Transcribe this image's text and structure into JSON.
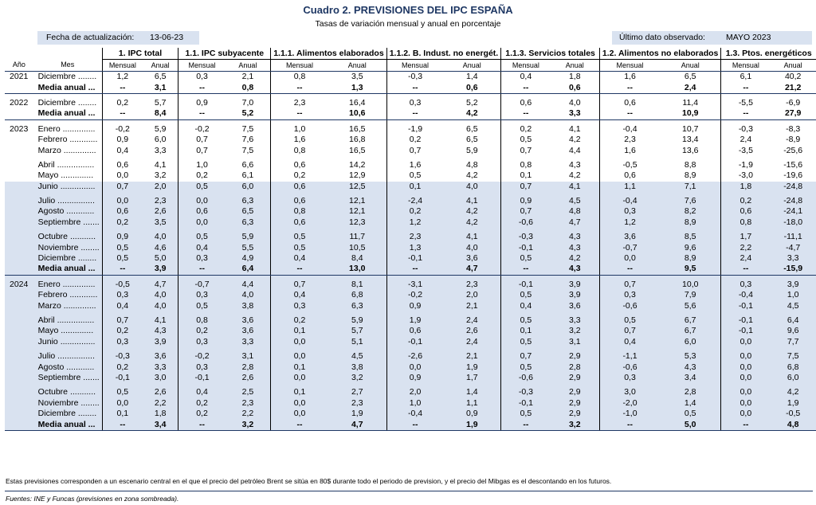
{
  "title": "Cuadro 2. PREVISIONES DEL IPC ESPAÑA",
  "subtitle": "Tasas de variación mensual y anual en porcentaje",
  "update_label": "Fecha de actualización:",
  "update_date": "13-06-23",
  "last_obs_label": "Último dato observado:",
  "last_obs_value": "MAYO 2023",
  "headers": {
    "year": "Año",
    "month": "Mes",
    "groups": [
      "1. IPC total",
      "1.1. IPC subyacente",
      "1.1.1. Alimentos elaborados",
      "1.1.2. B. Indust. no energét.",
      "1.1.3. Servicios totales",
      "1.2. Alimentos no elaborados",
      "1.3. Ptos. energéticos"
    ],
    "mensual": "Mensual",
    "anual": "Anual"
  },
  "rows": [
    {
      "kind": "row",
      "year": "2021",
      "month": "Diciembre ........",
      "values": [
        "1,2",
        "6,5",
        "0,3",
        "2,1",
        "0,8",
        "3,5",
        "-0,3",
        "1,4",
        "0,4",
        "1,8",
        "1,6",
        "6,5",
        "6,1",
        "40,2"
      ]
    },
    {
      "kind": "med",
      "month": "Media anual ...",
      "values": [
        "--",
        "3,1",
        "--",
        "0,8",
        "--",
        "1,3",
        "--",
        "0,6",
        "--",
        "0,6",
        "--",
        "2,4",
        "--",
        "21,2"
      ],
      "end": true
    },
    {
      "kind": "gap"
    },
    {
      "kind": "row",
      "year": "2022",
      "month": "Diciembre ........",
      "values": [
        "0,2",
        "5,7",
        "0,9",
        "7,0",
        "2,3",
        "16,4",
        "0,3",
        "5,2",
        "0,6",
        "4,0",
        "0,6",
        "11,4",
        "-5,5",
        "-6,9"
      ]
    },
    {
      "kind": "med",
      "month": "Media anual ...",
      "values": [
        "--",
        "8,4",
        "--",
        "5,2",
        "--",
        "10,6",
        "--",
        "4,2",
        "--",
        "3,3",
        "--",
        "10,9",
        "--",
        "27,9"
      ],
      "end": true
    },
    {
      "kind": "gap"
    },
    {
      "kind": "row",
      "year": "2023",
      "month": "Enero ..............",
      "values": [
        "-0,2",
        "5,9",
        "-0,2",
        "7,5",
        "1,0",
        "16,5",
        "-1,9",
        "6,5",
        "0,2",
        "4,1",
        "-0,4",
        "10,7",
        "-0,3",
        "-8,3"
      ]
    },
    {
      "kind": "row",
      "month": "Febrero ............",
      "values": [
        "0,9",
        "6,0",
        "0,7",
        "7,6",
        "1,6",
        "16,8",
        "0,2",
        "6,5",
        "0,5",
        "4,2",
        "2,3",
        "13,4",
        "2,4",
        "-8,9"
      ]
    },
    {
      "kind": "row",
      "month": "Marzo ..............",
      "values": [
        "0,4",
        "3,3",
        "0,7",
        "7,5",
        "0,8",
        "16,5",
        "0,7",
        "5,9",
        "0,7",
        "4,4",
        "1,6",
        "13,6",
        "-3,5",
        "-25,6"
      ]
    },
    {
      "kind": "gap"
    },
    {
      "kind": "row",
      "month": "Abril ................",
      "values": [
        "0,6",
        "4,1",
        "1,0",
        "6,6",
        "0,6",
        "14,2",
        "1,6",
        "4,8",
        "0,8",
        "4,3",
        "-0,5",
        "8,8",
        "-1,9",
        "-15,6"
      ]
    },
    {
      "kind": "row",
      "month": "Mayo ..............",
      "values": [
        "0,0",
        "3,2",
        "0,2",
        "6,1",
        "0,2",
        "12,9",
        "0,5",
        "4,2",
        "0,1",
        "4,2",
        "0,6",
        "8,9",
        "-3,0",
        "-19,6"
      ]
    },
    {
      "kind": "row",
      "shade": true,
      "month": "Junio ...............",
      "values": [
        "0,7",
        "2,0",
        "0,5",
        "6,0",
        "0,6",
        "12,5",
        "0,1",
        "4,0",
        "0,7",
        "4,1",
        "1,1",
        "7,1",
        "1,8",
        "-24,8"
      ]
    },
    {
      "kind": "gap",
      "shade": true
    },
    {
      "kind": "row",
      "shade": true,
      "month": "Julio ................",
      "values": [
        "0,0",
        "2,3",
        "0,0",
        "6,3",
        "0,6",
        "12,1",
        "-2,4",
        "4,1",
        "0,9",
        "4,5",
        "-0,4",
        "7,6",
        "0,2",
        "-24,8"
      ]
    },
    {
      "kind": "row",
      "shade": true,
      "month": "Agosto ............",
      "values": [
        "0,6",
        "2,6",
        "0,6",
        "6,5",
        "0,8",
        "12,1",
        "0,2",
        "4,2",
        "0,7",
        "4,8",
        "0,3",
        "8,2",
        "0,6",
        "-24,1"
      ]
    },
    {
      "kind": "row",
      "shade": true,
      "month": "Septiembre .......",
      "values": [
        "0,2",
        "3,5",
        "0,0",
        "6,3",
        "0,6",
        "12,3",
        "1,2",
        "4,2",
        "-0,6",
        "4,7",
        "1,2",
        "8,9",
        "0,8",
        "-18,0"
      ]
    },
    {
      "kind": "gap",
      "shade": true
    },
    {
      "kind": "row",
      "shade": true,
      "month": "Octubre ...........",
      "values": [
        "0,9",
        "4,0",
        "0,5",
        "5,9",
        "0,5",
        "11,7",
        "2,3",
        "4,1",
        "-0,3",
        "4,3",
        "3,6",
        "8,5",
        "1,7",
        "-11,1"
      ]
    },
    {
      "kind": "row",
      "shade": true,
      "month": "Noviembre ........",
      "values": [
        "0,5",
        "4,6",
        "0,4",
        "5,5",
        "0,5",
        "10,5",
        "1,3",
        "4,0",
        "-0,1",
        "4,3",
        "-0,7",
        "9,6",
        "2,2",
        "-4,7"
      ]
    },
    {
      "kind": "row",
      "shade": true,
      "month": "Diciembre ........",
      "values": [
        "0,5",
        "5,0",
        "0,3",
        "4,9",
        "0,4",
        "8,4",
        "-0,1",
        "3,6",
        "0,5",
        "4,2",
        "0,0",
        "8,9",
        "2,4",
        "3,3"
      ]
    },
    {
      "kind": "med",
      "shade": true,
      "month": "Media anual ...",
      "values": [
        "--",
        "3,9",
        "--",
        "6,4",
        "--",
        "13,0",
        "--",
        "4,7",
        "--",
        "4,3",
        "--",
        "9,5",
        "--",
        "-15,9"
      ],
      "end": true
    },
    {
      "kind": "gap",
      "shade": true
    },
    {
      "kind": "row",
      "shade": true,
      "year": "2024",
      "month": "Enero ..............",
      "values": [
        "-0,5",
        "4,7",
        "-0,7",
        "4,4",
        "0,7",
        "8,1",
        "-3,1",
        "2,3",
        "-0,1",
        "3,9",
        "0,7",
        "10,0",
        "0,3",
        "3,9"
      ]
    },
    {
      "kind": "row",
      "shade": true,
      "month": "Febrero ............",
      "values": [
        "0,3",
        "4,0",
        "0,3",
        "4,0",
        "0,4",
        "6,8",
        "-0,2",
        "2,0",
        "0,5",
        "3,9",
        "0,3",
        "7,9",
        "-0,4",
        "1,0"
      ]
    },
    {
      "kind": "row",
      "shade": true,
      "month": "Marzo ..............",
      "values": [
        "0,4",
        "4,0",
        "0,5",
        "3,8",
        "0,3",
        "6,3",
        "0,9",
        "2,1",
        "0,4",
        "3,6",
        "-0,6",
        "5,6",
        "-0,1",
        "4,5"
      ]
    },
    {
      "kind": "gap",
      "shade": true
    },
    {
      "kind": "row",
      "shade": true,
      "month": "Abril ................",
      "values": [
        "0,7",
        "4,1",
        "0,8",
        "3,6",
        "0,2",
        "5,9",
        "1,9",
        "2,4",
        "0,5",
        "3,3",
        "0,5",
        "6,7",
        "-0,1",
        "6,4"
      ]
    },
    {
      "kind": "row",
      "shade": true,
      "month": "Mayo ..............",
      "values": [
        "0,2",
        "4,3",
        "0,2",
        "3,6",
        "0,1",
        "5,7",
        "0,6",
        "2,6",
        "0,1",
        "3,2",
        "0,7",
        "6,7",
        "-0,1",
        "9,6"
      ]
    },
    {
      "kind": "row",
      "shade": true,
      "month": "Junio ...............",
      "values": [
        "0,3",
        "3,9",
        "0,3",
        "3,3",
        "0,0",
        "5,1",
        "-0,1",
        "2,4",
        "0,5",
        "3,1",
        "0,4",
        "6,0",
        "0,0",
        "7,7"
      ]
    },
    {
      "kind": "gap",
      "shade": true
    },
    {
      "kind": "row",
      "shade": true,
      "month": "Julio ................",
      "values": [
        "-0,3",
        "3,6",
        "-0,2",
        "3,1",
        "0,0",
        "4,5",
        "-2,6",
        "2,1",
        "0,7",
        "2,9",
        "-1,1",
        "5,3",
        "0,0",
        "7,5"
      ]
    },
    {
      "kind": "row",
      "shade": true,
      "month": "Agosto ............",
      "values": [
        "0,2",
        "3,3",
        "0,3",
        "2,8",
        "0,1",
        "3,8",
        "0,0",
        "1,9",
        "0,5",
        "2,8",
        "-0,6",
        "4,3",
        "0,0",
        "6,8"
      ]
    },
    {
      "kind": "row",
      "shade": true,
      "month": "Septiembre .......",
      "values": [
        "-0,1",
        "3,0",
        "-0,1",
        "2,6",
        "0,0",
        "3,2",
        "0,9",
        "1,7",
        "-0,6",
        "2,9",
        "0,3",
        "3,4",
        "0,0",
        "6,0"
      ]
    },
    {
      "kind": "gap",
      "shade": true
    },
    {
      "kind": "row",
      "shade": true,
      "month": "Octubre ...........",
      "values": [
        "0,5",
        "2,6",
        "0,4",
        "2,5",
        "0,1",
        "2,7",
        "2,0",
        "1,4",
        "-0,3",
        "2,9",
        "3,0",
        "2,8",
        "0,0",
        "4,2"
      ]
    },
    {
      "kind": "row",
      "shade": true,
      "month": "Noviembre ........",
      "values": [
        "0,0",
        "2,2",
        "0,2",
        "2,3",
        "0,0",
        "2,3",
        "1,0",
        "1,1",
        "-0,1",
        "2,9",
        "-2,0",
        "1,4",
        "0,0",
        "1,9"
      ]
    },
    {
      "kind": "row",
      "shade": true,
      "month": "Diciembre ........",
      "values": [
        "0,1",
        "1,8",
        "0,2",
        "2,2",
        "0,0",
        "1,9",
        "-0,4",
        "0,9",
        "0,5",
        "2,9",
        "-1,0",
        "0,5",
        "0,0",
        "-0,5"
      ]
    },
    {
      "kind": "med",
      "shade": true,
      "month": "Media anual ...",
      "values": [
        "--",
        "3,4",
        "--",
        "3,2",
        "--",
        "4,7",
        "--",
        "1,9",
        "--",
        "3,2",
        "--",
        "5,0",
        "--",
        "4,8"
      ],
      "end": true
    }
  ],
  "footnote": "Estas previsiones corresponden a un escenario central en el que el precio del petróleo Brent se sitúa en 80$ durante todo el periodo de prevision, y el precio del Mibgas es el descontando en los futuros.",
  "source": "Fuentes: INE y Funcas (previsiones en zona sombreada)."
}
